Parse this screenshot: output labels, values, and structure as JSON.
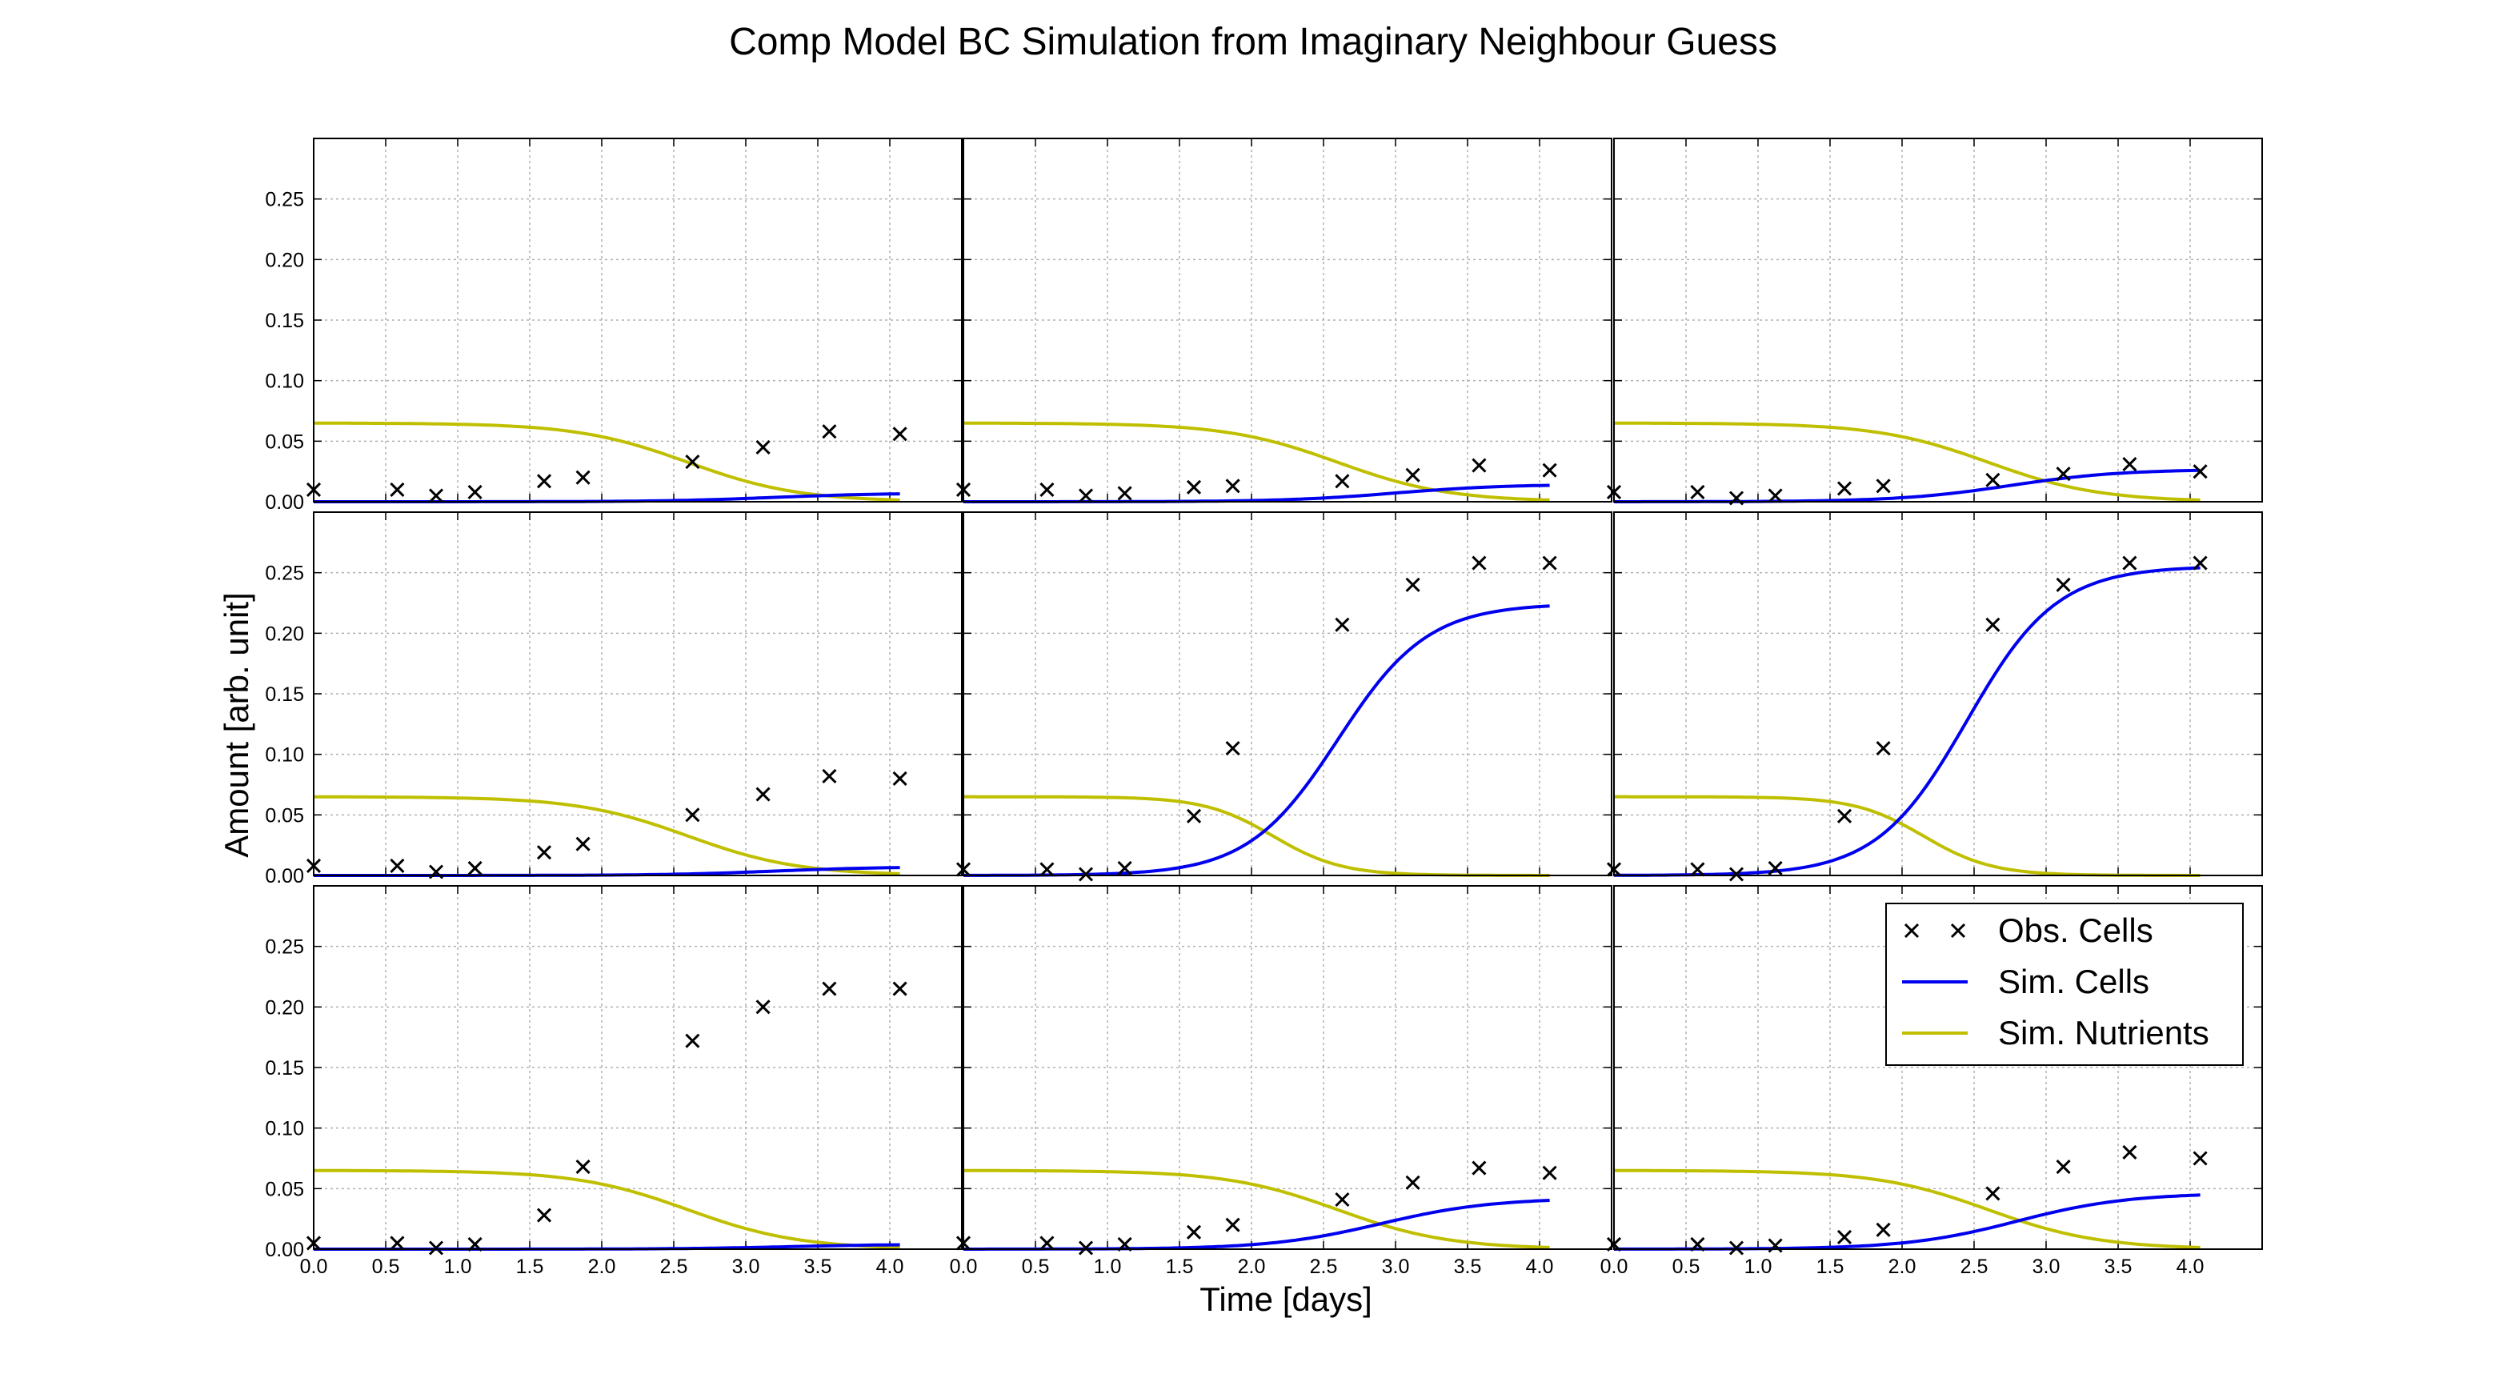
{
  "figure": {
    "title": "Comp Model BC Simulation from Imaginary Neighbour Guess",
    "xlabel": "Time [days]",
    "ylabel": "Amount [arb. unit]"
  },
  "legend": {
    "placement": "top-right",
    "obs_label": "Obs. Cells",
    "sim_cells_label": "Sim. Cells",
    "sim_nutrients_label": "Sim. Nutrients"
  },
  "colors": {
    "obs": "#000000",
    "sim_cells": "#0000ee",
    "sim_nutrients": "#bfbf00",
    "grid": "#b0b0b0"
  },
  "chart_data": {
    "type": "scatter",
    "layout": "3x3 grid of subplots with shared axes",
    "grid": true,
    "xlim": [
      0,
      4.5
    ],
    "ylim": [
      0,
      0.3
    ],
    "xticks": [
      "0.0",
      "0.5",
      "1.0",
      "1.5",
      "2.0",
      "2.5",
      "3.0",
      "3.5",
      "4.0"
    ],
    "xtick_values": [
      0,
      0.5,
      1.0,
      1.5,
      2.0,
      2.5,
      3.0,
      3.5,
      4.0
    ],
    "yticks": [
      "0.00",
      "0.05",
      "0.10",
      "0.15",
      "0.20",
      "0.25"
    ],
    "ytick_values": [
      0,
      0.05,
      0.1,
      0.15,
      0.2,
      0.25
    ],
    "obs_x": [
      0.0,
      0.58,
      0.85,
      1.12,
      1.6,
      1.87,
      2.63,
      3.12,
      3.58,
      4.07
    ],
    "nutrients": {
      "start": 0.065,
      "midpoint_slow": 2.6,
      "midpoint_fast": 2.15
    },
    "panels": [
      {
        "obs": [
          0.01,
          0.01,
          0.005,
          0.008,
          0.017,
          0.02,
          0.033,
          0.045,
          0.058,
          0.056
        ],
        "cells_final": 0.007,
        "cells_mid": 3.2,
        "nutr_mid": 2.6
      },
      {
        "obs": [
          0.01,
          0.01,
          0.005,
          0.007,
          0.012,
          0.013,
          0.017,
          0.022,
          0.03,
          0.026
        ],
        "cells_final": 0.014,
        "cells_mid": 3.0,
        "nutr_mid": 2.6
      },
      {
        "obs": [
          0.008,
          0.008,
          0.003,
          0.005,
          0.011,
          0.013,
          0.018,
          0.023,
          0.031,
          0.025
        ],
        "cells_final": 0.026,
        "cells_mid": 2.75,
        "nutr_mid": 2.6
      },
      {
        "obs": [
          0.008,
          0.008,
          0.003,
          0.006,
          0.019,
          0.026,
          0.05,
          0.067,
          0.082,
          0.08
        ],
        "cells_final": 0.007,
        "cells_mid": 3.2,
        "nutr_mid": 2.6
      },
      {
        "obs": [
          0.005,
          0.005,
          0.001,
          0.006,
          0.049,
          0.105,
          0.207,
          0.24,
          0.258,
          0.258
        ],
        "cells_final": 0.218,
        "cells_mid": 2.6,
        "nutr_mid": 2.15
      },
      {
        "obs": [
          0.005,
          0.005,
          0.001,
          0.006,
          0.049,
          0.105,
          0.207,
          0.24,
          0.258,
          0.258
        ],
        "cells_final": 0.248,
        "cells_mid": 2.45,
        "nutr_mid": 2.15
      },
      {
        "obs": [
          0.005,
          0.005,
          0.001,
          0.004,
          0.028,
          0.068,
          0.172,
          0.2,
          0.215,
          0.215
        ],
        "cells_final": 0.004,
        "cells_mid": 3.3,
        "nutr_mid": 2.6
      },
      {
        "obs": [
          0.005,
          0.005,
          0.001,
          0.004,
          0.014,
          0.02,
          0.041,
          0.055,
          0.067,
          0.063
        ],
        "cells_final": 0.041,
        "cells_mid": 2.9,
        "nutr_mid": 2.6
      },
      {
        "obs": [
          0.004,
          0.004,
          0.001,
          0.003,
          0.01,
          0.016,
          0.046,
          0.068,
          0.08,
          0.075
        ],
        "cells_final": 0.045,
        "cells_mid": 2.8,
        "nutr_mid": 2.6
      }
    ]
  }
}
